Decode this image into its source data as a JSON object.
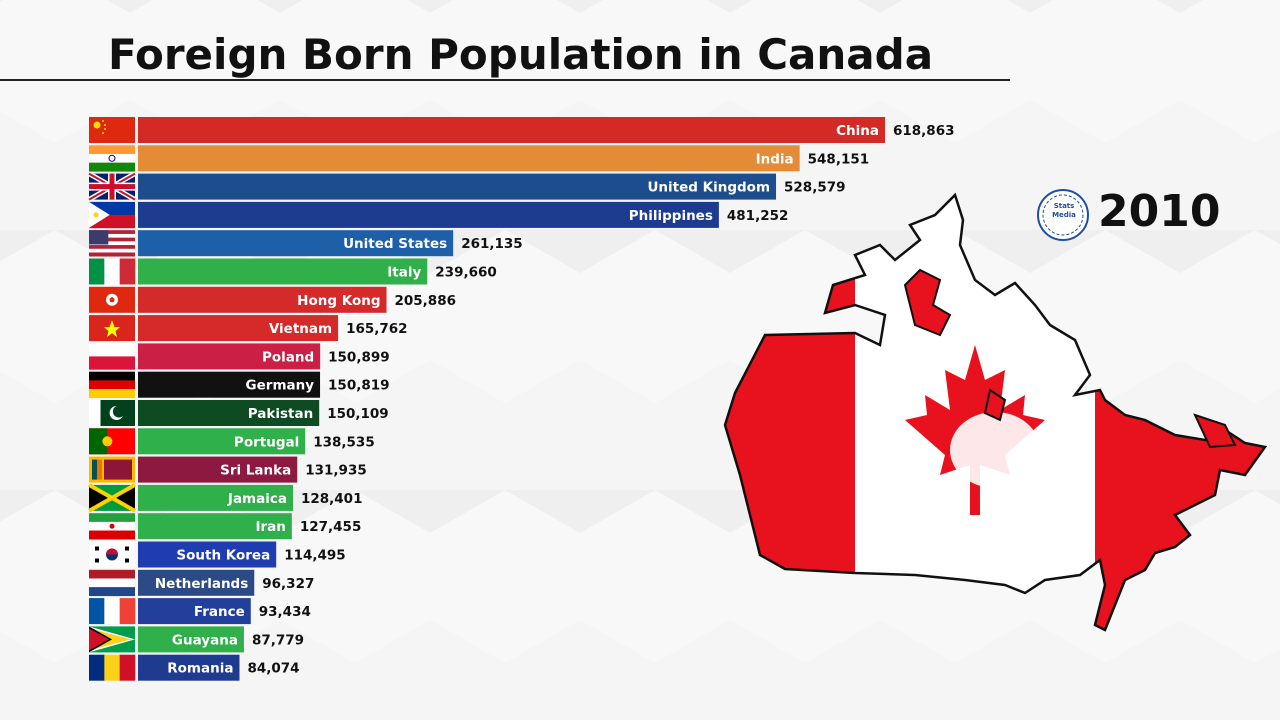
{
  "page": {
    "title": "Foreign Born Population in Canada",
    "year": "2010",
    "logo_line1": "Stats",
    "logo_line2": "Media"
  },
  "colors": {
    "background": "#f2f2f2",
    "canada_red": "#e8121e"
  },
  "chart_data": {
    "type": "bar",
    "orientation": "horizontal",
    "title": "Foreign Born Population in Canada",
    "xlim": [
      0,
      618863
    ],
    "grid": false,
    "categories": [
      "China",
      "India",
      "United Kingdom",
      "Philippines",
      "United States",
      "Italy",
      "Hong Kong",
      "Vietnam",
      "Poland",
      "Germany",
      "Pakistan",
      "Portugal",
      "Sri Lanka",
      "Jamaica",
      "Iran",
      "South Korea",
      "Netherlands",
      "France",
      "Guayana",
      "Romania"
    ],
    "values": [
      618863,
      548151,
      528579,
      481252,
      261135,
      239660,
      205886,
      165762,
      150899,
      150819,
      150109,
      138535,
      131935,
      128401,
      127455,
      114495,
      96327,
      93434,
      87779,
      84074
    ],
    "value_labels": [
      "618,863",
      "548,151",
      "528,579",
      "481,252",
      "261,135",
      "239,660",
      "205,886",
      "165,762",
      "150,899",
      "150,819",
      "150,109",
      "138,535",
      "131,935",
      "128,401",
      "127,455",
      "114,495",
      "96,327",
      "93,434",
      "87,779",
      "84,074"
    ],
    "colors": [
      "#d42a26",
      "#e38b37",
      "#1d4d8c",
      "#1d3b8f",
      "#1e60a8",
      "#2fb04a",
      "#d42a2a",
      "#d42a2a",
      "#cc1f45",
      "#111111",
      "#0e4a22",
      "#2fb04a",
      "#8d1840",
      "#2fb04a",
      "#2fb04a",
      "#1f3cb0",
      "#2c4b86",
      "#233f9c",
      "#2fb04a",
      "#1f3b8f"
    ],
    "flags": [
      "china-flag",
      "india-flag",
      "united-kingdom-flag",
      "philippines-flag",
      "united-states-flag",
      "italy-flag",
      "hong-kong-flag",
      "vietnam-flag",
      "poland-flag",
      "germany-flag",
      "pakistan-flag",
      "portugal-flag",
      "sri-lanka-flag",
      "jamaica-flag",
      "iran-flag",
      "south-korea-flag",
      "netherlands-flag",
      "france-flag",
      "guyana-flag",
      "romania-flag"
    ]
  }
}
